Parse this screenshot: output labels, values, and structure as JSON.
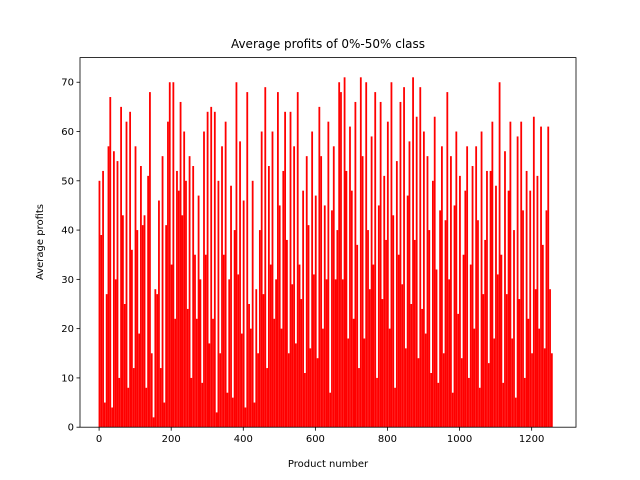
{
  "chart_data": {
    "type": "bar",
    "title": "Average profits of 0%-50% class",
    "x_label": "Product number",
    "y_label": "Average profits",
    "color": "#ff0000",
    "xlim": [
      -53,
      1323
    ],
    "ylim": [
      0,
      75
    ],
    "xticks": [
      0,
      200,
      400,
      600,
      800,
      1000,
      1200
    ],
    "yticks": [
      0,
      10,
      20,
      30,
      40,
      50,
      60,
      70
    ],
    "x": [
      1,
      6,
      11,
      16,
      21,
      26,
      31,
      36,
      41,
      46,
      51,
      56,
      61,
      66,
      71,
      76,
      81,
      86,
      91,
      96,
      101,
      106,
      111,
      116,
      121,
      126,
      131,
      136,
      141,
      146,
      151,
      156,
      161,
      166,
      171,
      176,
      181,
      186,
      191,
      196,
      201,
      206,
      211,
      216,
      221,
      226,
      231,
      236,
      241,
      246,
      251,
      256,
      261,
      266,
      271,
      276,
      281,
      286,
      291,
      296,
      301,
      306,
      311,
      316,
      321,
      326,
      331,
      336,
      341,
      346,
      351,
      356,
      361,
      366,
      371,
      376,
      381,
      386,
      391,
      396,
      401,
      406,
      411,
      416,
      421,
      426,
      431,
      436,
      441,
      446,
      451,
      456,
      461,
      466,
      471,
      476,
      481,
      486,
      491,
      496,
      501,
      506,
      511,
      516,
      521,
      526,
      531,
      536,
      541,
      546,
      551,
      556,
      561,
      566,
      571,
      576,
      581,
      586,
      591,
      596,
      601,
      606,
      611,
      616,
      621,
      626,
      631,
      636,
      641,
      646,
      651,
      656,
      661,
      666,
      671,
      676,
      681,
      686,
      691,
      696,
      701,
      706,
      711,
      716,
      721,
      726,
      731,
      736,
      741,
      746,
      751,
      756,
      761,
      766,
      771,
      776,
      781,
      786,
      791,
      796,
      801,
      806,
      811,
      816,
      821,
      826,
      831,
      836,
      841,
      846,
      851,
      856,
      861,
      866,
      871,
      876,
      881,
      886,
      891,
      896,
      901,
      906,
      911,
      916,
      921,
      926,
      931,
      936,
      941,
      946,
      951,
      956,
      961,
      966,
      971,
      976,
      981,
      986,
      991,
      996,
      1001,
      1006,
      1011,
      1016,
      1021,
      1026,
      1031,
      1036,
      1041,
      1046,
      1051,
      1056,
      1061,
      1066,
      1071,
      1076,
      1081,
      1086,
      1091,
      1096,
      1101,
      1106,
      1111,
      1116,
      1121,
      1126,
      1131,
      1136,
      1141,
      1146,
      1151,
      1156,
      1161,
      1166,
      1171,
      1176,
      1181,
      1186,
      1191,
      1196,
      1201,
      1206,
      1211,
      1216,
      1221,
      1226,
      1231,
      1236,
      1241,
      1246,
      1251,
      1256
    ],
    "values": [
      50,
      39,
      52,
      5,
      27,
      57,
      67,
      4,
      56,
      30,
      54,
      10,
      65,
      43,
      25,
      62,
      8,
      64,
      36,
      12,
      57,
      40,
      19,
      53,
      41,
      43,
      8,
      51,
      68,
      15,
      2,
      28,
      27,
      46,
      12,
      55,
      5,
      41,
      62,
      70,
      33,
      70,
      22,
      52,
      48,
      66,
      43,
      60,
      50,
      24,
      55,
      10,
      53,
      35,
      22,
      47,
      30,
      9,
      60,
      35,
      64,
      17,
      65,
      22,
      64,
      3,
      50,
      15,
      57,
      35,
      62,
      7,
      30,
      49,
      6,
      40,
      70,
      31,
      58,
      19,
      46,
      4,
      68,
      25,
      20,
      50,
      5,
      28,
      15,
      40,
      60,
      27,
      69,
      12,
      53,
      33,
      60,
      22,
      30,
      68,
      45,
      20,
      52,
      64,
      38,
      15,
      64,
      29,
      57,
      17,
      68,
      33,
      26,
      48,
      11,
      55,
      41,
      16,
      60,
      31,
      47,
      14,
      65,
      55,
      20,
      45,
      30,
      62,
      7,
      44,
      57,
      30,
      40,
      70,
      68,
      30,
      71,
      52,
      18,
      61,
      48,
      22,
      66,
      37,
      12,
      71,
      55,
      18,
      70,
      40,
      28,
      59,
      33,
      68,
      10,
      45,
      66,
      26,
      51,
      38,
      62,
      20,
      70,
      43,
      8,
      54,
      35,
      66,
      29,
      69,
      16,
      47,
      58,
      25,
      71,
      38,
      63,
      14,
      69,
      24,
      60,
      19,
      55,
      40,
      11,
      50,
      63,
      32,
      9,
      44,
      57,
      15,
      42,
      68,
      30,
      55,
      7,
      45,
      60,
      23,
      51,
      14,
      35,
      48,
      57,
      10,
      33,
      53,
      20,
      57,
      42,
      8,
      60,
      27,
      38,
      52,
      13,
      52,
      62,
      18,
      49,
      31,
      70,
      35,
      9,
      56,
      27,
      48,
      62,
      18,
      40,
      6,
      59,
      26,
      62,
      44,
      10,
      52,
      22,
      48,
      15,
      63,
      28,
      51,
      20,
      61,
      37,
      16,
      44,
      61,
      28,
      15
    ]
  }
}
